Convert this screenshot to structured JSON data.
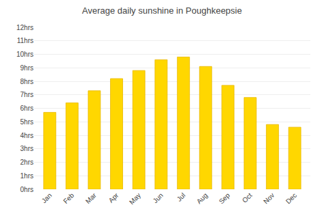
{
  "chart_data": {
    "type": "bar",
    "title": "Average daily sunshine in Poughkeepsie",
    "categories": [
      "Jan",
      "Feb",
      "Mar",
      "Apr",
      "May",
      "Jun",
      "Jul",
      "Aug",
      "Sep",
      "Oct",
      "Nov",
      "Dec"
    ],
    "values": [
      5.7,
      6.4,
      7.3,
      8.2,
      8.8,
      9.6,
      9.8,
      9.1,
      7.7,
      6.8,
      4.8,
      4.6
    ],
    "color": "#FFD700",
    "ylim": [
      0,
      12
    ],
    "yticks": [
      {
        "value": 0,
        "label": "0hrs"
      },
      {
        "value": 1,
        "label": "1hrs"
      },
      {
        "value": 2,
        "label": "2hrs"
      },
      {
        "value": 3,
        "label": "3hrs"
      },
      {
        "value": 4,
        "label": "4hrs"
      },
      {
        "value": 5,
        "label": "5hrs"
      },
      {
        "value": 6,
        "label": "6hrs"
      },
      {
        "value": 7,
        "label": "7hrs"
      },
      {
        "value": 8,
        "label": "8hrs"
      },
      {
        "value": 9,
        "label": "9hrs"
      },
      {
        "value": 10,
        "label": "10hrs"
      },
      {
        "value": 11,
        "label": "11hrs"
      },
      {
        "value": 12,
        "label": "12hrs"
      }
    ],
    "grid": true
  }
}
